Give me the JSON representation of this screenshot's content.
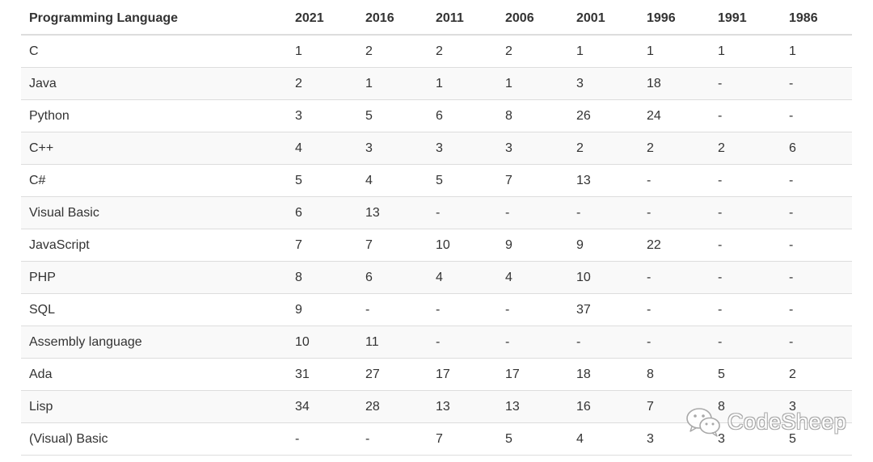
{
  "table": {
    "headers": [
      "Programming Language",
      "2021",
      "2016",
      "2011",
      "2006",
      "2001",
      "1996",
      "1991",
      "1986"
    ],
    "rows": [
      [
        "C",
        "1",
        "2",
        "2",
        "2",
        "1",
        "1",
        "1",
        "1"
      ],
      [
        "Java",
        "2",
        "1",
        "1",
        "1",
        "3",
        "18",
        "-",
        "-"
      ],
      [
        "Python",
        "3",
        "5",
        "6",
        "8",
        "26",
        "24",
        "-",
        "-"
      ],
      [
        "C++",
        "4",
        "3",
        "3",
        "3",
        "2",
        "2",
        "2",
        "6"
      ],
      [
        "C#",
        "5",
        "4",
        "5",
        "7",
        "13",
        "-",
        "-",
        "-"
      ],
      [
        "Visual Basic",
        "6",
        "13",
        "-",
        "-",
        "-",
        "-",
        "-",
        "-"
      ],
      [
        "JavaScript",
        "7",
        "7",
        "10",
        "9",
        "9",
        "22",
        "-",
        "-"
      ],
      [
        "PHP",
        "8",
        "6",
        "4",
        "4",
        "10",
        "-",
        "-",
        "-"
      ],
      [
        "SQL",
        "9",
        "-",
        "-",
        "-",
        "37",
        "-",
        "-",
        "-"
      ],
      [
        "Assembly language",
        "10",
        "11",
        "-",
        "-",
        "-",
        "-",
        "-",
        "-"
      ],
      [
        "Ada",
        "31",
        "27",
        "17",
        "17",
        "18",
        "8",
        "5",
        "2"
      ],
      [
        "Lisp",
        "34",
        "28",
        "13",
        "13",
        "16",
        "7",
        "8",
        "3"
      ],
      [
        "(Visual) Basic",
        "-",
        "-",
        "7",
        "5",
        "4",
        "3",
        "3",
        "5"
      ]
    ]
  },
  "watermark": {
    "text": "CodeSheep",
    "icon": "wechat-icon"
  }
}
